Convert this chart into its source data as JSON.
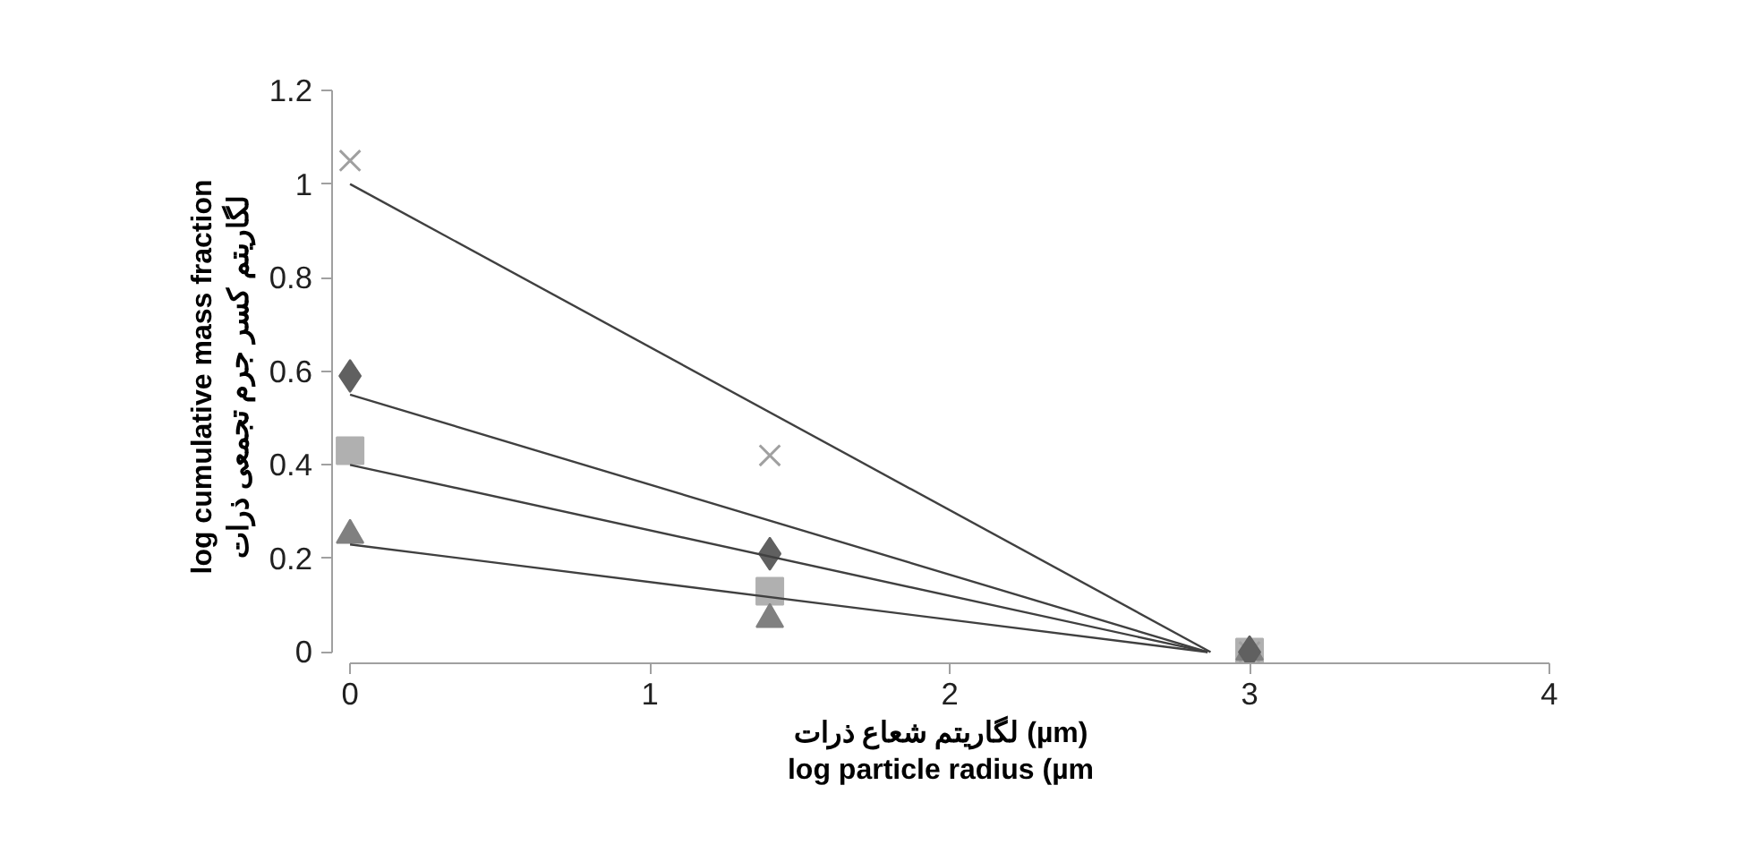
{
  "chart_data": {
    "type": "scatter",
    "xlabel": "لگاریتم شعاع ذرات (µm)\nlog particle radius (µm",
    "ylabel": "log cumulative mass fraction\nلگاریتم کسر جرم تجمعی ذرات",
    "x": [
      0,
      1.4,
      3
    ],
    "xlim": [
      0,
      4
    ],
    "xticks": [
      0,
      1,
      2,
      3,
      4
    ],
    "ylim": [
      0,
      1.2
    ],
    "yticks": [
      0,
      0.2,
      0.4,
      0.6,
      0.8,
      1,
      1.2
    ],
    "grid": false,
    "series": [
      {
        "marker": "square",
        "color": "#b0b0b0",
        "values": [
          0.43,
          0.13,
          0
        ]
      },
      {
        "marker": "cross",
        "color": "#a0a0a0",
        "values": [
          1.05,
          0.42,
          0
        ]
      },
      {
        "marker": "triangle",
        "color": "#808080",
        "values": [
          0.25,
          0.07,
          0
        ]
      },
      {
        "marker": "diamond",
        "color": "#606060",
        "values": [
          0.59,
          0.21,
          null
        ]
      },
      {
        "type": "line",
        "marker": "none",
        "color": "#404040",
        "x": [
          0,
          2.87
        ],
        "values": [
          1.0,
          0
        ]
      },
      {
        "type": "line",
        "marker": "none",
        "color": "#404040",
        "x": [
          0,
          2.86
        ],
        "values": [
          0.55,
          0
        ]
      },
      {
        "type": "line",
        "marker": "none",
        "color": "#404040",
        "x": [
          0,
          2.86
        ],
        "values": [
          0.4,
          0
        ]
      },
      {
        "type": "line",
        "marker": "none",
        "color": "#404040",
        "x": [
          0,
          2.86
        ],
        "values": [
          0.23,
          0
        ]
      }
    ]
  }
}
